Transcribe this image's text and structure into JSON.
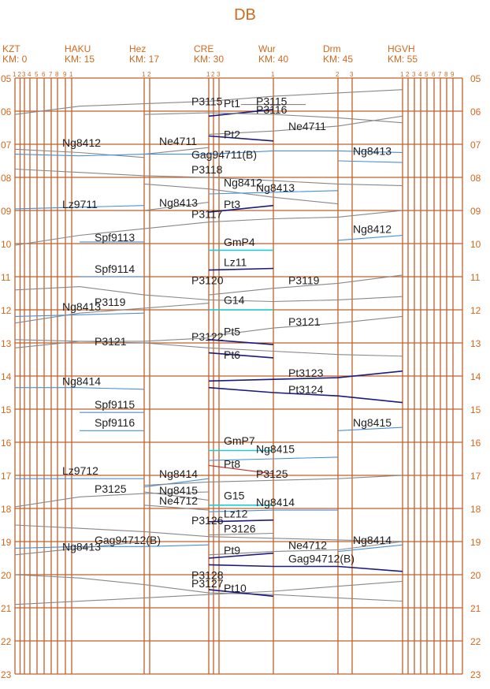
{
  "title": "DB",
  "stations": [
    {
      "code": "KZT",
      "km": "KM: 0"
    },
    {
      "code": "HAKU",
      "km": "KM: 15"
    },
    {
      "code": "Hez",
      "km": "KM: 17"
    },
    {
      "code": "CRE",
      "km": "KM: 30"
    },
    {
      "code": "Wur",
      "km": "KM: 40"
    },
    {
      "code": "Drm",
      "km": "KM: 45"
    },
    {
      "code": "HGVH",
      "km": "KM: 55"
    }
  ],
  "hours": [
    "05",
    "06",
    "07",
    "08",
    "09",
    "10",
    "11",
    "12",
    "13",
    "14",
    "15",
    "16",
    "17",
    "18",
    "19",
    "20",
    "21",
    "22",
    "23"
  ],
  "track_numbers": [
    {
      "station": 0,
      "labels": [
        "1",
        "2",
        "3",
        "4",
        "5",
        "6",
        "7",
        "8",
        "9",
        "1"
      ]
    },
    {
      "station": 2,
      "labels": [
        "1",
        "2"
      ]
    },
    {
      "station": 3,
      "labels": [
        "1",
        "2",
        "3"
      ]
    },
    {
      "station": 4,
      "labels": [
        "1"
      ]
    },
    {
      "station": 5,
      "labels": [
        "2",
        "3"
      ]
    },
    {
      "station": 6,
      "labels": [
        "1",
        "2",
        "3",
        "4",
        "5",
        "6",
        "7",
        "8",
        "9"
      ]
    }
  ],
  "colors": {
    "grid": "#c0622a",
    "label": "#d2691e",
    "train_gray": "#888888",
    "train_blue": "#4a8fd8",
    "train_navy": "#1a1a80",
    "train_cyan": "#18d0d8",
    "train_red": "#c03030"
  },
  "trains": [
    {
      "label": "P3115",
      "t": 5.85,
      "pts": [
        [
          0,
          6.1
        ],
        [
          1,
          5.85
        ],
        [
          3,
          5.7
        ],
        [
          4,
          5.55
        ],
        [
          6,
          5.35
        ]
      ],
      "c": "gray"
    },
    {
      "label": "P3115",
      "t": 5.85,
      "pts": [
        [
          3.5,
          5.8
        ],
        [
          4.5,
          5.8
        ]
      ],
      "c": "gray"
    },
    {
      "label": "Pt1",
      "t": 5.9,
      "pts": [
        [
          3,
          6.15
        ],
        [
          4,
          5.95
        ]
      ],
      "c": "navy"
    },
    {
      "label": "P3116",
      "t": 6.1,
      "pts": [
        [
          2,
          6.1
        ],
        [
          3,
          6.05
        ],
        [
          4,
          6.1
        ],
        [
          5,
          6.2
        ],
        [
          6,
          6.35
        ]
      ],
      "c": "gray"
    },
    {
      "label": "Ne4711",
      "t": 6.6,
      "pts": [
        [
          3,
          6.7
        ],
        [
          4,
          6.6
        ],
        [
          5,
          6.45
        ],
        [
          6,
          6.15
        ]
      ],
      "c": "gray"
    },
    {
      "label": "Pt2",
      "t": 6.85,
      "pts": [
        [
          3,
          6.75
        ],
        [
          4,
          6.9
        ]
      ],
      "c": "navy"
    },
    {
      "label": "Ng8412",
      "t": 7.1,
      "pts": [
        [
          0,
          7.15
        ],
        [
          1,
          7.25
        ],
        [
          2,
          7.4
        ]
      ],
      "c": "gray"
    },
    {
      "label": "Ne4711",
      "t": 7.05,
      "pts": [
        [
          2,
          7.3
        ],
        [
          3,
          7.1
        ]
      ],
      "c": "gray"
    },
    {
      "label": "Gag94711(B)",
      "t": 7.45,
      "pts": [
        [
          0,
          7.3
        ],
        [
          1,
          7.35
        ],
        [
          2,
          7.3
        ],
        [
          3,
          7.3
        ],
        [
          4,
          7.2
        ],
        [
          5,
          7.2
        ],
        [
          6,
          7.25
        ]
      ],
      "c": "blue"
    },
    {
      "label": "Ng8413",
      "t": 7.35,
      "pts": [
        [
          5,
          7.5
        ],
        [
          6,
          7.55
        ]
      ],
      "c": "blue"
    },
    {
      "label": "P3118",
      "t": 7.9,
      "pts": [
        [
          0,
          7.75
        ],
        [
          1,
          7.85
        ],
        [
          2,
          7.95
        ],
        [
          3,
          8.0
        ],
        [
          4,
          8.1
        ],
        [
          5,
          8.2
        ],
        [
          6,
          8.25
        ]
      ],
      "c": "gray"
    },
    {
      "label": "Ng8412",
      "t": 8.3,
      "pts": [
        [
          2,
          8.2
        ],
        [
          3,
          8.35
        ],
        [
          4,
          8.6
        ],
        [
          5,
          8.8
        ]
      ],
      "c": "gray"
    },
    {
      "label": "Ng8413",
      "t": 8.45,
      "pts": [
        [
          3,
          8.5
        ],
        [
          4,
          8.45
        ],
        [
          5,
          8.4
        ]
      ],
      "c": "blue"
    },
    {
      "label": "Lz9711",
      "t": 8.95,
      "pts": [
        [
          0,
          8.95
        ],
        [
          1,
          8.9
        ],
        [
          2,
          8.85
        ]
      ],
      "c": "blue"
    },
    {
      "label": "Ng8413",
      "t": 8.9,
      "pts": [
        [
          2,
          9.0
        ],
        [
          3,
          8.75
        ]
      ],
      "c": "gray"
    },
    {
      "label": "Pt3",
      "t": 8.95,
      "pts": [
        [
          3,
          9.05
        ],
        [
          4,
          8.85
        ]
      ],
      "c": "navy"
    },
    {
      "label": "P3117",
      "t": 9.25,
      "pts": [
        [
          0,
          10.05
        ],
        [
          1,
          9.75
        ],
        [
          2,
          9.55
        ],
        [
          3,
          9.35
        ],
        [
          4,
          9.25
        ],
        [
          5,
          9.2
        ],
        [
          6,
          9.0
        ]
      ],
      "c": "gray"
    },
    {
      "label": "Ng8412",
      "t": 9.7,
      "pts": [
        [
          5,
          9.9
        ],
        [
          6,
          9.75
        ]
      ],
      "c": "blue"
    },
    {
      "label": "Spf9113",
      "t": 9.95,
      "pts": [
        [
          1,
          9.95
        ],
        [
          2,
          9.95
        ]
      ],
      "c": "blue"
    },
    {
      "label": "GmP4",
      "t": 10.1,
      "pts": [
        [
          3,
          10.2
        ],
        [
          4,
          10.2
        ]
      ],
      "c": "cyan"
    },
    {
      "label": "Lz11",
      "t": 10.7,
      "pts": [
        [
          3,
          10.8
        ],
        [
          4,
          10.75
        ]
      ],
      "c": "navy"
    },
    {
      "label": "Spf9114",
      "t": 10.9,
      "pts": [
        [
          1,
          11.0
        ],
        [
          2,
          11.0
        ]
      ],
      "c": "blue"
    },
    {
      "label": "P3119",
      "t": 11.25,
      "pts": [
        [
          3,
          11.55
        ],
        [
          4,
          11.35
        ],
        [
          5,
          11.2
        ],
        [
          6,
          10.95
        ]
      ],
      "c": "gray"
    },
    {
      "label": "P3120",
      "t": 11.25,
      "pts": [
        [
          0,
          11.4
        ],
        [
          1,
          11.3
        ],
        [
          2,
          11.55
        ],
        [
          3,
          11.7
        ],
        [
          4,
          11.75
        ],
        [
          5,
          11.7
        ],
        [
          6,
          11.6
        ]
      ],
      "c": "gray"
    },
    {
      "label": "P3119",
      "t": 11.9,
      "pts": [
        [
          0,
          12.4
        ],
        [
          1,
          12.1
        ],
        [
          2,
          11.95
        ],
        [
          3,
          11.8
        ]
      ],
      "c": "gray"
    },
    {
      "label": "G14",
      "t": 11.85,
      "pts": [
        [
          3,
          12.0
        ],
        [
          4,
          12.0
        ]
      ],
      "c": "cyan"
    },
    {
      "label": "Ng8413",
      "t": 12.05,
      "pts": [
        [
          0,
          12.2
        ],
        [
          1,
          12.15
        ],
        [
          2,
          12.1
        ]
      ],
      "c": "blue"
    },
    {
      "label": "P3121",
      "t": 12.5,
      "pts": [
        [
          3,
          12.8
        ],
        [
          4,
          12.55
        ],
        [
          5,
          12.4
        ],
        [
          6,
          12.2
        ]
      ],
      "c": "gray"
    },
    {
      "label": "P3122",
      "t": 12.95,
      "pts": [
        [
          0,
          12.9
        ],
        [
          1,
          12.95
        ],
        [
          2,
          13.0
        ],
        [
          3,
          13.15
        ],
        [
          4,
          13.25
        ],
        [
          5,
          13.35
        ],
        [
          6,
          13.4
        ]
      ],
      "c": "gray"
    },
    {
      "label": "P3121",
      "t": 13.1,
      "pts": [
        [
          0,
          13.15
        ],
        [
          1,
          12.95
        ],
        [
          2,
          12.95
        ],
        [
          3,
          12.85
        ]
      ],
      "c": "gray"
    },
    {
      "label": "Pt5",
      "t": 12.8,
      "pts": [
        [
          3,
          12.9
        ],
        [
          4,
          13.05
        ]
      ],
      "c": "navy"
    },
    {
      "label": "Pt6",
      "t": 13.5,
      "pts": [
        [
          3,
          13.3
        ],
        [
          4,
          13.45
        ]
      ],
      "c": "navy"
    },
    {
      "label": "Pt3123",
      "t": 14.05,
      "pts": [
        [
          3,
          14.15
        ],
        [
          4,
          14.1
        ],
        [
          5,
          14.05
        ],
        [
          6,
          13.85
        ]
      ],
      "c": "navy"
    },
    {
      "label": "Pt3124",
      "t": 14.55,
      "pts": [
        [
          3,
          14.35
        ],
        [
          4,
          14.5
        ],
        [
          5,
          14.6
        ],
        [
          6,
          14.8
        ]
      ],
      "c": "navy"
    },
    {
      "label": "Ng8414",
      "t": 14.3,
      "pts": [
        [
          0,
          14.35
        ],
        [
          1,
          14.35
        ],
        [
          2,
          14.4
        ]
      ],
      "c": "blue"
    },
    {
      "label": "Spf9115",
      "t": 15.0,
      "pts": [
        [
          1,
          15.1
        ],
        [
          2,
          15.1
        ]
      ],
      "c": "blue"
    },
    {
      "label": "Ng8415",
      "t": 15.55,
      "pts": [
        [
          5,
          15.65
        ],
        [
          6,
          15.55
        ]
      ],
      "c": "blue"
    },
    {
      "label": "Spf9116",
      "t": 15.55,
      "pts": [
        [
          1,
          15.65
        ],
        [
          2,
          15.65
        ]
      ],
      "c": "blue"
    },
    {
      "label": "GmP7",
      "t": 16.1,
      "pts": [
        [
          3,
          16.25
        ],
        [
          4,
          16.25
        ]
      ],
      "c": "cyan"
    },
    {
      "label": "Ng8415",
      "t": 16.35,
      "pts": [
        [
          3,
          16.55
        ],
        [
          4,
          16.5
        ],
        [
          5,
          16.45
        ]
      ],
      "c": "blue"
    },
    {
      "label": "Pt8",
      "t": 16.8,
      "pts": [
        [
          3,
          16.7
        ],
        [
          4,
          16.95
        ]
      ],
      "c": "red"
    },
    {
      "label": "Lz9712",
      "t": 17.0,
      "pts": [
        [
          0,
          17.1
        ],
        [
          1,
          17.1
        ],
        [
          2,
          17.1
        ]
      ],
      "c": "blue"
    },
    {
      "label": "Ng8414",
      "t": 17.1,
      "pts": [
        [
          2,
          17.35
        ],
        [
          3,
          17.1
        ]
      ],
      "c": "blue"
    },
    {
      "label": "P3125",
      "t": 17.1,
      "pts": [
        [
          2,
          17.3
        ],
        [
          3,
          17.2
        ],
        [
          4,
          17.15
        ],
        [
          5,
          17.1
        ],
        [
          6,
          17.0
        ]
      ],
      "c": "gray"
    },
    {
      "label": "P3125",
      "t": 17.55,
      "pts": [
        [
          0,
          17.95
        ],
        [
          1,
          17.65
        ],
        [
          2,
          17.55
        ],
        [
          3,
          17.5
        ]
      ],
      "c": "gray"
    },
    {
      "label": "Ng8415",
      "t": 17.6,
      "pts": [
        [
          2,
          17.5
        ],
        [
          3,
          17.75
        ]
      ],
      "c": "gray"
    },
    {
      "label": "G15",
      "t": 17.75,
      "pts": [
        [
          3,
          17.9
        ],
        [
          4,
          17.9
        ]
      ],
      "c": "cyan"
    },
    {
      "label": "Ng8414",
      "t": 17.95,
      "pts": [
        [
          3,
          18.1
        ],
        [
          4,
          18.05
        ],
        [
          5,
          18.05
        ]
      ],
      "c": "blue"
    },
    {
      "label": "Ne4712",
      "t": 17.9,
      "pts": [
        [
          2,
          17.9
        ],
        [
          3,
          18.05
        ]
      ],
      "c": "gray"
    },
    {
      "label": "Lz12",
      "t": 18.3,
      "pts": [
        [
          3,
          18.4
        ],
        [
          4,
          18.35
        ]
      ],
      "c": "navy"
    },
    {
      "label": "P3126",
      "t": 18.5,
      "pts": [
        [
          0,
          18.5
        ],
        [
          1,
          18.6
        ],
        [
          2,
          18.7
        ],
        [
          3,
          18.85
        ],
        [
          4,
          18.9
        ],
        [
          5,
          18.95
        ],
        [
          6,
          19.0
        ]
      ],
      "c": "gray"
    },
    {
      "label": "P3126",
      "t": 18.75,
      "pts": [
        [
          3,
          18.8
        ],
        [
          4,
          18.75
        ]
      ],
      "c": "gray"
    },
    {
      "label": "Gag94712(B)",
      "t": 19.1,
      "pts": [
        [
          0,
          19.2
        ],
        [
          1,
          19.15
        ],
        [
          2,
          19.15
        ],
        [
          3,
          19.1
        ]
      ],
      "c": "blue"
    },
    {
      "label": "Ng8413",
      "t": 19.3,
      "pts": [
        [
          0,
          19.4
        ],
        [
          1,
          19.2
        ],
        [
          2,
          19.0
        ]
      ],
      "c": "gray"
    },
    {
      "label": "Ne4712",
      "t": 19.25,
      "pts": [
        [
          3,
          19.4
        ],
        [
          4,
          19.3
        ],
        [
          5,
          19.25
        ],
        [
          6,
          19.0
        ]
      ],
      "c": "gray"
    },
    {
      "label": "Ng8414",
      "t": 19.1,
      "pts": [
        [
          5,
          19.3
        ],
        [
          6,
          19.1
        ]
      ],
      "c": "blue"
    },
    {
      "label": "Pt9",
      "t": 19.4,
      "pts": [
        [
          3,
          19.5
        ],
        [
          4,
          19.35
        ]
      ],
      "c": "navy"
    },
    {
      "label": "Gag94712(B)",
      "t": 19.65,
      "pts": [
        [
          3,
          19.7
        ],
        [
          4,
          19.75
        ],
        [
          5,
          19.75
        ],
        [
          6,
          19.9
        ]
      ],
      "c": "navy"
    },
    {
      "label": "P3128",
      "t": 20.15,
      "pts": [
        [
          0,
          20.0
        ],
        [
          1,
          20.1
        ],
        [
          2,
          20.3
        ],
        [
          3,
          20.55
        ],
        [
          4,
          20.6
        ],
        [
          5,
          20.7
        ],
        [
          6,
          20.8
        ]
      ],
      "c": "gray"
    },
    {
      "label": "P3127",
      "t": 20.4,
      "pts": [
        [
          0,
          20.9
        ],
        [
          1,
          20.8
        ],
        [
          2,
          20.7
        ],
        [
          3,
          20.6
        ],
        [
          4,
          20.5
        ],
        [
          5,
          20.35
        ],
        [
          6,
          20.2
        ]
      ],
      "c": "gray"
    },
    {
      "label": "Pt10",
      "t": 20.55,
      "pts": [
        [
          3,
          20.45
        ],
        [
          4,
          20.65
        ]
      ],
      "c": "navy"
    }
  ]
}
